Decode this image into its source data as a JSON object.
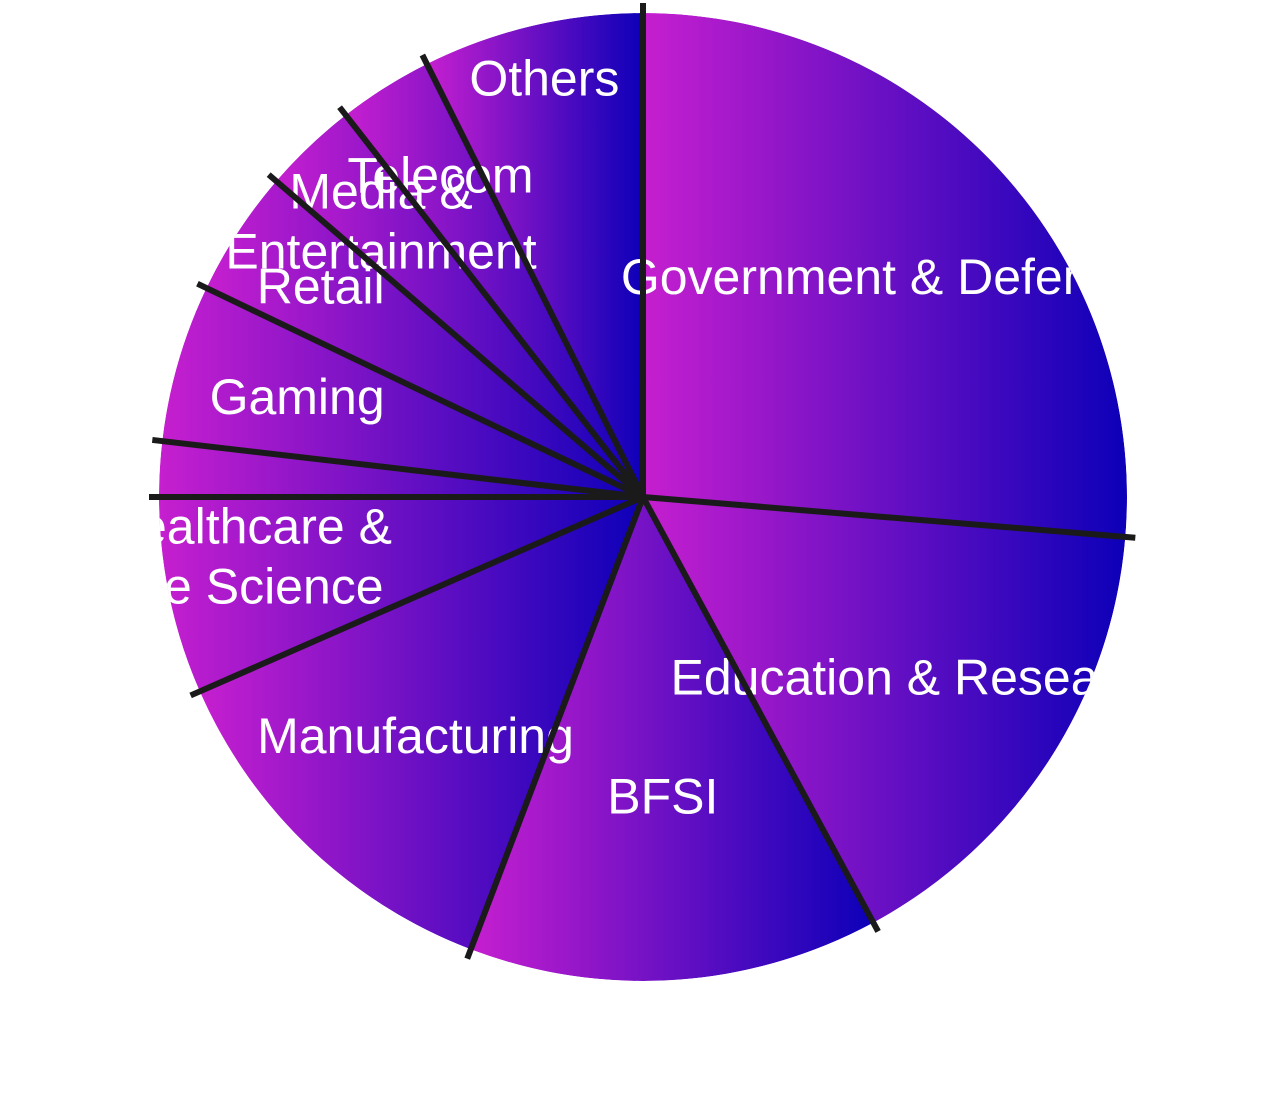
{
  "chart_data": {
    "type": "pie",
    "title": "",
    "categories": [
      "Government & Defense",
      "Education & Research",
      "BFSI",
      "Manufacturing",
      "Healthcare & Life Science",
      "Gaming",
      "Retail",
      "Media & Entertainment",
      "Telecom",
      "Others"
    ],
    "values": [
      25,
      15,
      13,
      12,
      8,
      5,
      4,
      3,
      3,
      7
    ],
    "label_lines": [
      [
        "Government & Defense"
      ],
      [
        "Education & Research"
      ],
      [
        "BFSI"
      ],
      [
        "Manufacturing"
      ],
      [
        "Healthcare &",
        "Life Science"
      ],
      [
        "Gaming"
      ],
      [
        "Retail"
      ],
      [
        "Media &",
        "Entertainment"
      ],
      [
        "Telecom"
      ],
      [
        "Others"
      ]
    ],
    "start_angle_deg": 90,
    "direction": "clockwise",
    "legend": "none",
    "colors": {
      "gradient_left": "#c61fcf",
      "gradient_right": "#0c00b8",
      "divider": "#1a1a1a",
      "label": "#ffffff"
    }
  }
}
